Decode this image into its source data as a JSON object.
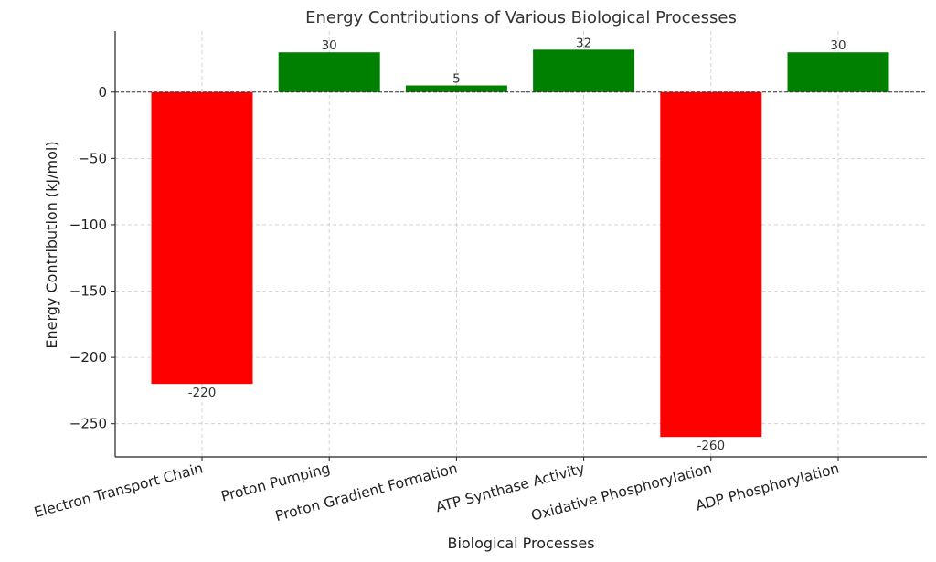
{
  "chart_data": {
    "type": "bar",
    "title": "Energy Contributions of Various Biological Processes",
    "xlabel": "Biological Processes",
    "ylabel": "Energy Contribution (kJ/mol)",
    "categories": [
      "Electron Transport Chain",
      "Proton Pumping",
      "Proton Gradient Formation",
      "ATP Synthase Activity",
      "Oxidative Phosphorylation",
      "ADP Phosphorylation"
    ],
    "values": [
      -220,
      30,
      5,
      32,
      -260,
      30
    ],
    "data_labels": [
      "-220",
      "30",
      "5",
      "32",
      "-260",
      "30"
    ],
    "colors": [
      "#ff0000",
      "#008000",
      "#008000",
      "#008000",
      "#ff0000",
      "#008000"
    ],
    "ylim": [
      -275,
      46
    ],
    "yticks": [
      0,
      -50,
      -100,
      -150,
      -200,
      -250
    ],
    "ytick_labels": [
      "0",
      "−50",
      "−100",
      "−150",
      "−200",
      "−250"
    ],
    "zero_line": true,
    "grid": true
  }
}
